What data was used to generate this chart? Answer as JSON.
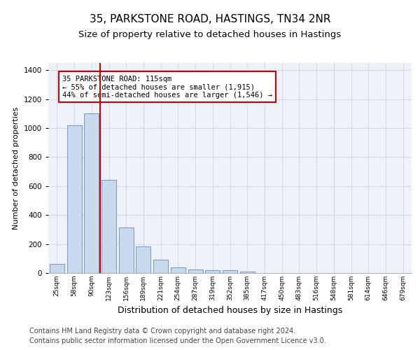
{
  "title": "35, PARKSTONE ROAD, HASTINGS, TN34 2NR",
  "subtitle": "Size of property relative to detached houses in Hastings",
  "xlabel": "Distribution of detached houses by size in Hastings",
  "ylabel": "Number of detached properties",
  "categories": [
    "25sqm",
    "58sqm",
    "90sqm",
    "123sqm",
    "156sqm",
    "189sqm",
    "221sqm",
    "254sqm",
    "287sqm",
    "319sqm",
    "352sqm",
    "385sqm",
    "417sqm",
    "450sqm",
    "483sqm",
    "516sqm",
    "548sqm",
    "581sqm",
    "614sqm",
    "646sqm",
    "679sqm"
  ],
  "values": [
    65,
    1020,
    1100,
    645,
    315,
    185,
    90,
    40,
    25,
    20,
    20,
    10,
    0,
    0,
    0,
    0,
    0,
    0,
    0,
    0,
    0
  ],
  "bar_color": "#c9d9ed",
  "bar_edge_color": "#5a8fc0",
  "grid_color": "#d0d8e8",
  "background_color": "#eef2f8",
  "vline_x": 2.5,
  "vline_color": "#cc0000",
  "annotation_text": "35 PARKSTONE ROAD: 115sqm\n← 55% of detached houses are smaller (1,915)\n44% of semi-detached houses are larger (1,546) →",
  "annotation_box_color": "#ffffff",
  "annotation_box_edge": "#cc0000",
  "footer_line1": "Contains HM Land Registry data © Crown copyright and database right 2024.",
  "footer_line2": "Contains public sector information licensed under the Open Government Licence v3.0.",
  "ylim": [
    0,
    1450
  ],
  "title_fontsize": 11,
  "subtitle_fontsize": 9.5,
  "xlabel_fontsize": 9,
  "ylabel_fontsize": 8,
  "footer_fontsize": 7
}
